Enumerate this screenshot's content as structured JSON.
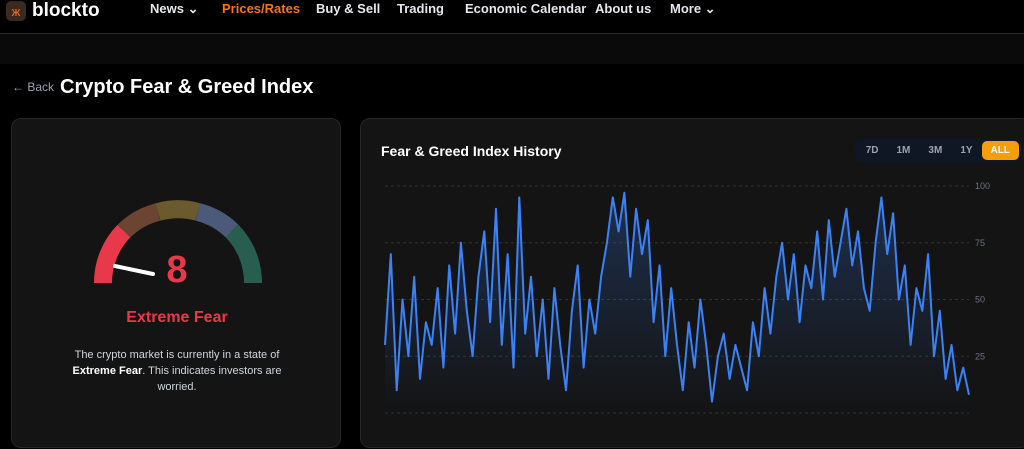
{
  "nav": {
    "brand": "blockto",
    "items": [
      "News",
      "Prices/Rates",
      "Buy & Sell",
      "Trading",
      "Economic Calendar",
      "About us",
      "More"
    ],
    "active": "Prices/Rates",
    "accent": "#f97316"
  },
  "page": {
    "back": "Back",
    "title": "Crypto Fear & Greed Index"
  },
  "gauge": {
    "value": "8",
    "label": "Extreme Fear",
    "color": "#e8394a",
    "desc_pre": "The crypto market is currently in a state of ",
    "desc_bold": "Extreme Fear",
    "desc_post": ". This indicates investors are worried."
  },
  "chart": {
    "title": "Fear & Greed Index History",
    "ranges": [
      "7D",
      "1M",
      "3M",
      "1Y",
      "ALL"
    ],
    "selected": "ALL"
  },
  "chart_data": {
    "type": "area",
    "ylim": [
      0,
      100
    ],
    "yticks": [
      "100",
      "75",
      "50",
      "25"
    ],
    "grid": true,
    "color": "#3b82f6",
    "values": [
      30,
      70,
      10,
      50,
      25,
      60,
      15,
      40,
      30,
      55,
      20,
      65,
      35,
      75,
      45,
      25,
      60,
      80,
      40,
      90,
      30,
      70,
      20,
      95,
      35,
      60,
      25,
      50,
      15,
      55,
      30,
      10,
      45,
      65,
      20,
      50,
      35,
      60,
      75,
      95,
      80,
      97,
      60,
      90,
      70,
      85,
      40,
      65,
      25,
      55,
      30,
      10,
      40,
      20,
      50,
      30,
      5,
      25,
      35,
      15,
      30,
      20,
      10,
      40,
      25,
      55,
      35,
      60,
      75,
      50,
      70,
      40,
      65,
      55,
      80,
      50,
      85,
      60,
      75,
      90,
      65,
      80,
      55,
      45,
      75,
      95,
      70,
      88,
      50,
      65,
      30,
      55,
      45,
      70,
      25,
      45,
      15,
      30,
      10,
      20,
      8
    ]
  }
}
